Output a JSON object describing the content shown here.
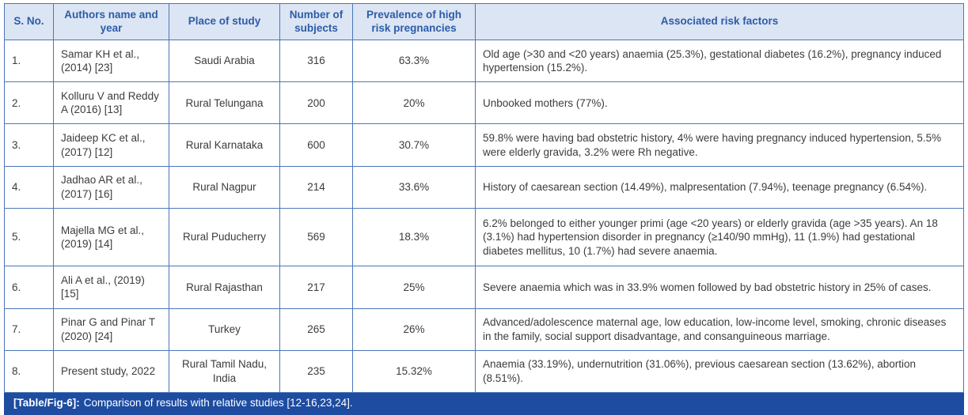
{
  "table": {
    "headers": [
      "S. No.",
      "Authors name and year",
      "Place of study",
      "Number of subjects",
      "Prevalence of high risk pregnancies",
      "Associated risk factors"
    ],
    "rows": [
      {
        "sno": "1.",
        "authors": "Samar KH et al., (2014) [23]",
        "place": "Saudi Arabia",
        "subjects": "316",
        "prevalence": "63.3%",
        "risk_factors": "Old age (>30 and <20 years) anaemia (25.3%), gestational diabetes (16.2%), pregnancy induced hypertension (15.2%)."
      },
      {
        "sno": "2.",
        "authors": "Kolluru V and Reddy A (2016) [13]",
        "place": "Rural Telungana",
        "subjects": "200",
        "prevalence": "20%",
        "risk_factors": "Unbooked mothers (77%)."
      },
      {
        "sno": "3.",
        "authors": "Jaideep KC et al., (2017) [12]",
        "place": "Rural Karnataka",
        "subjects": "600",
        "prevalence": "30.7%",
        "risk_factors": "59.8% were having bad obstetric history, 4% were having pregnancy induced hypertension, 5.5% were elderly gravida, 3.2% were Rh negative."
      },
      {
        "sno": "4.",
        "authors": "Jadhao AR et al., (2017) [16]",
        "place": "Rural Nagpur",
        "subjects": "214",
        "prevalence": "33.6%",
        "risk_factors": "History of caesarean section (14.49%), malpresentation (7.94%), teenage pregnancy (6.54%)."
      },
      {
        "sno": "5.",
        "authors": "Majella MG et al., (2019) [14]",
        "place": "Rural Puducherry",
        "subjects": "569",
        "prevalence": "18.3%",
        "risk_factors": "6.2% belonged to either younger primi (age <20 years) or elderly gravida (age >35 years). An 18 (3.1%) had hypertension disorder in pregnancy (≥140/90 mmHg), 11 (1.9%) had gestational diabetes mellitus, 10 (1.7%) had severe anaemia."
      },
      {
        "sno": "6.",
        "authors": "Ali A et al., (2019) [15]",
        "place": "Rural Rajasthan",
        "subjects": "217",
        "prevalence": "25%",
        "risk_factors": "Severe anaemia which was in 33.9% women followed by bad obstetric history in 25% of cases."
      },
      {
        "sno": "7.",
        "authors": "Pinar G and Pinar T (2020) [24]",
        "place": "Turkey",
        "subjects": "265",
        "prevalence": "26%",
        "risk_factors": "Advanced/adolescence maternal age, low education, low-income level, smoking, chronic diseases in the family, social support disadvantage, and consanguineous marriage."
      },
      {
        "sno": "8.",
        "authors": "Present study, 2022",
        "place": "Rural Tamil Nadu, India",
        "subjects": "235",
        "prevalence": "15.32%",
        "risk_factors": "Anaemia (33.19%), undernutrition (31.06%), previous caesarean section (13.62%), abortion (8.51%)."
      }
    ]
  },
  "caption": {
    "label": "[Table/Fig-6]:",
    "text": "Comparison of results with relative studies [12-16,23,24]."
  },
  "colors": {
    "border_blue": "#4a77b9",
    "header_bg": "#dbe5f4",
    "header_text": "#2d5ca8",
    "caption_bg": "#1d4ca0",
    "caption_text": "#ffffff"
  }
}
